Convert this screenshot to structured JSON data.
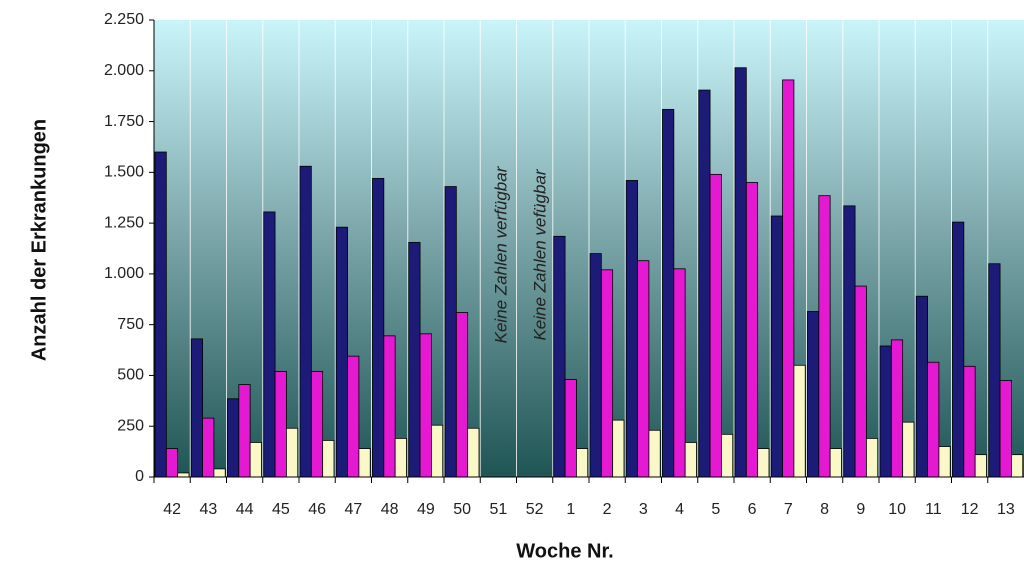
{
  "chart_data": {
    "type": "bar",
    "y_label": "Anzahl der Erkrankungen",
    "x_label": "Woche Nr.",
    "annotations": [
      "Keine Zahlen verfügbar",
      "Keine Zahlen vefügbar"
    ],
    "categories": [
      "42",
      "43",
      "44",
      "45",
      "46",
      "47",
      "48",
      "49",
      "50",
      "51",
      "52",
      "1",
      "2",
      "3",
      "4",
      "5",
      "6",
      "7",
      "8",
      "9",
      "10",
      "11",
      "12",
      "13"
    ],
    "series": [
      {
        "color": "#1c1c78",
        "values": [
          1600,
          680,
          385,
          1305,
          1530,
          1230,
          1470,
          1155,
          1430,
          null,
          null,
          1185,
          1100,
          1460,
          1810,
          1905,
          2015,
          1285,
          815,
          1335,
          645,
          890,
          1255,
          1050
        ]
      },
      {
        "color": "#e619d2",
        "values": [
          140,
          290,
          455,
          520,
          520,
          595,
          695,
          705,
          810,
          null,
          null,
          480,
          1020,
          1065,
          1025,
          1490,
          1450,
          1955,
          1385,
          940,
          675,
          565,
          545,
          475
        ]
      },
      {
        "color": "#fbf8c8",
        "values": [
          20,
          40,
          170,
          240,
          180,
          140,
          190,
          255,
          240,
          null,
          null,
          140,
          280,
          230,
          170,
          210,
          140,
          550,
          140,
          190,
          270,
          150,
          110,
          110
        ]
      }
    ],
    "ylim": [
      0,
      2250
    ],
    "yticks": [
      0,
      250,
      500,
      750,
      {
        "value": 1000,
        "label": "1.000"
      },
      {
        "value": 1250,
        "label": "1.250"
      },
      {
        "value": 1500,
        "label": "1.500"
      },
      {
        "value": 1750,
        "label": "1.750"
      },
      {
        "value": 2000,
        "label": "2.000"
      },
      {
        "value": 2250,
        "label": "2.250"
      }
    ]
  }
}
